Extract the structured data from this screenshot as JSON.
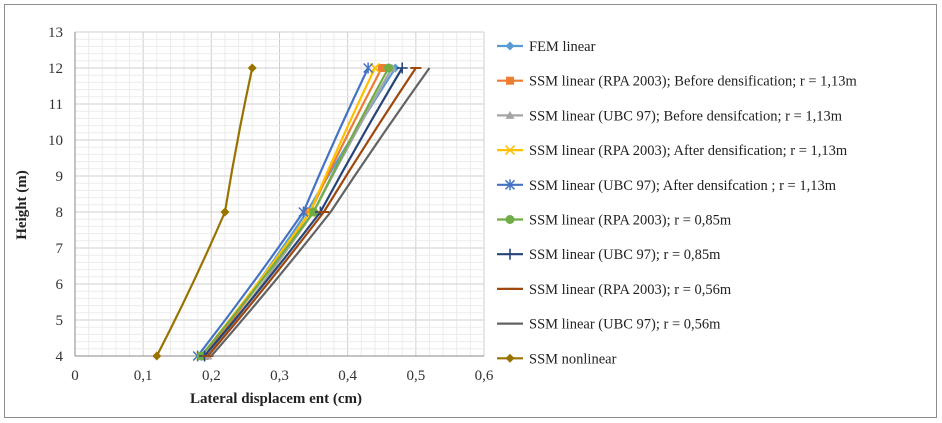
{
  "chart_data": {
    "type": "line",
    "xlabel": "Lateral displacem ent (cm)",
    "ylabel": "Height (m)",
    "xlim": [
      0,
      0.6
    ],
    "ylim": [
      4,
      13
    ],
    "x_ticks": [
      "0",
      "0,1",
      "0,2",
      "0,3",
      "0,4",
      "0,5",
      "0,6"
    ],
    "y_ticks": [
      "4",
      "5",
      "6",
      "7",
      "8",
      "9",
      "10",
      "11",
      "12",
      "13"
    ],
    "grid": true,
    "legend_position": "right",
    "series": [
      {
        "name": "FEM linear",
        "color": "#5b9bd5",
        "marker": "diamond",
        "points": [
          [
            0.19,
            4
          ],
          [
            0.34,
            8
          ],
          [
            0.47,
            12
          ]
        ]
      },
      {
        "name": "SSM linear (RPA 2003); Before densification; r = 1,13m",
        "color": "#ed7d31",
        "marker": "square",
        "points": [
          [
            0.19,
            4
          ],
          [
            0.345,
            8
          ],
          [
            0.45,
            12
          ]
        ]
      },
      {
        "name": "SSM linear (UBC 97); Before densifcation; r = 1,13m",
        "color": "#a5a5a5",
        "marker": "triangle",
        "points": [
          [
            0.195,
            4
          ],
          [
            0.35,
            8
          ],
          [
            0.465,
            12
          ]
        ]
      },
      {
        "name": "SSM linear (RPA 2003); After densification; r = 1,13m",
        "color": "#ffc000",
        "marker": "x",
        "points": [
          [
            0.185,
            4
          ],
          [
            0.345,
            8
          ],
          [
            0.44,
            12
          ]
        ]
      },
      {
        "name": "SSM linear (UBC 97); After densifcation ; r = 1,13m",
        "color": "#4472c4",
        "marker": "star",
        "points": [
          [
            0.18,
            4
          ],
          [
            0.335,
            8
          ],
          [
            0.43,
            12
          ]
        ]
      },
      {
        "name": "SSM linear (RPA 2003); r = 0,85m",
        "color": "#70ad47",
        "marker": "circle",
        "points": [
          [
            0.185,
            4
          ],
          [
            0.35,
            8
          ],
          [
            0.46,
            12
          ]
        ]
      },
      {
        "name": "SSM linear (UBC 97); r = 0,85m",
        "color": "#264478",
        "marker": "plus",
        "points": [
          [
            0.19,
            4
          ],
          [
            0.36,
            8
          ],
          [
            0.48,
            12
          ]
        ]
      },
      {
        "name": "SSM linear (RPA 2003); r = 0,56m",
        "color": "#9e480e",
        "marker": "dash",
        "points": [
          [
            0.195,
            4
          ],
          [
            0.365,
            8
          ],
          [
            0.5,
            12
          ]
        ]
      },
      {
        "name": "SSM linear (UBC 97); r = 0,56m",
        "color": "#636363",
        "marker": "none",
        "points": [
          [
            0.2,
            4
          ],
          [
            0.375,
            8
          ],
          [
            0.52,
            12
          ]
        ]
      },
      {
        "name": "SSM nonlinear",
        "color": "#997300",
        "marker": "diamond",
        "points": [
          [
            0.12,
            4
          ],
          [
            0.22,
            8
          ],
          [
            0.26,
            12
          ]
        ]
      }
    ]
  }
}
